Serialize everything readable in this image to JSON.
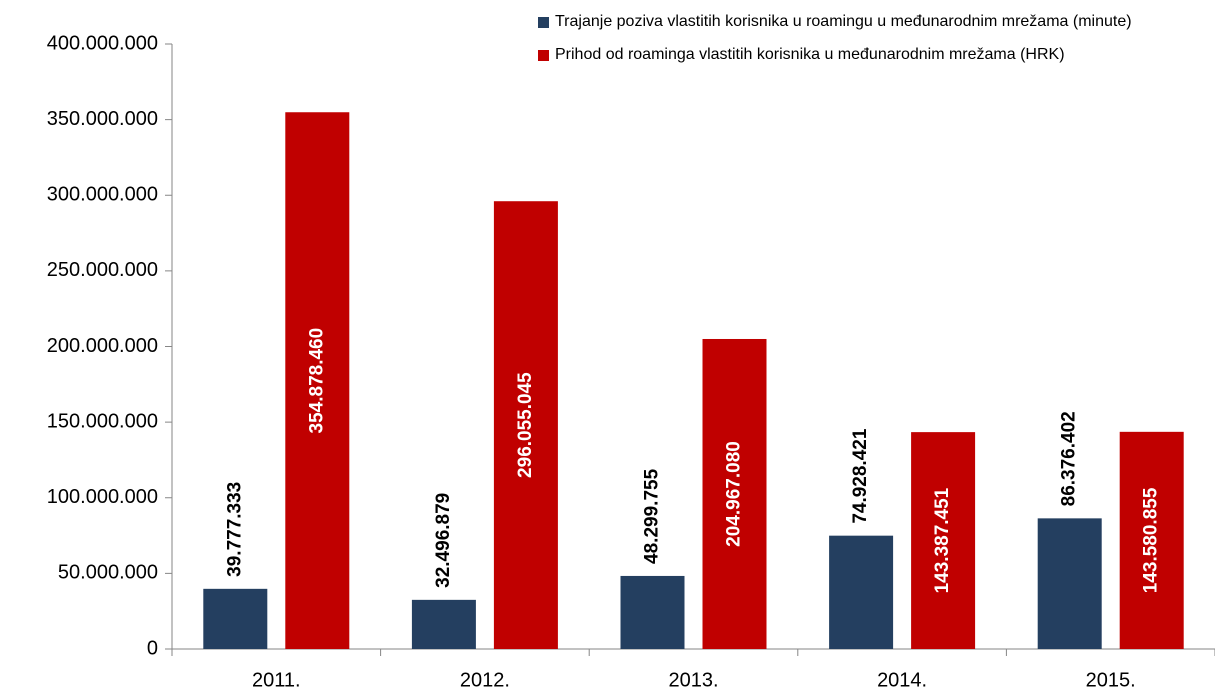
{
  "chart_data": {
    "type": "bar",
    "categories": [
      "2011.",
      "2012.",
      "2013.",
      "2014.",
      "2015."
    ],
    "series": [
      {
        "name": "Trajanje poziva vlastitih korisnika u roamingu u međunarodnim mrežama (minute)",
        "color": "#243f60",
        "values": [
          39777333,
          32496879,
          48299755,
          74928421,
          86376402
        ],
        "value_labels": [
          "39.777.333",
          "32.496.879",
          "48.299.755",
          "74.928.421",
          "86.376.402"
        ]
      },
      {
        "name": "Prihod od roaminga vlastitih korisnika u međunarodnim mrežama (HRK)",
        "color": "#c00000",
        "values": [
          354878460,
          296055045,
          204967080,
          143387451,
          143580855
        ],
        "value_labels": [
          "354.878.460",
          "296.055.045",
          "204.967.080",
          "143.387.451",
          "143.580.855"
        ]
      }
    ],
    "ylim": [
      0,
      400000000
    ],
    "yticks": [
      0,
      {
        "value": 50000000,
        "label": "50.000.000"
      },
      {
        "value": 100000000,
        "label": "100.000.000"
      },
      {
        "value": 150000000,
        "label": "150.000.000"
      },
      {
        "value": 200000000,
        "label": "200.000.000"
      },
      {
        "value": 250000000,
        "label": "250.000.000"
      },
      {
        "value": 300000000,
        "label": "300.000.000"
      },
      {
        "value": 350000000,
        "label": "350.000.000"
      },
      {
        "value": 400000000,
        "label": "400.000.000"
      }
    ],
    "grid": false,
    "legend": "top-right"
  }
}
